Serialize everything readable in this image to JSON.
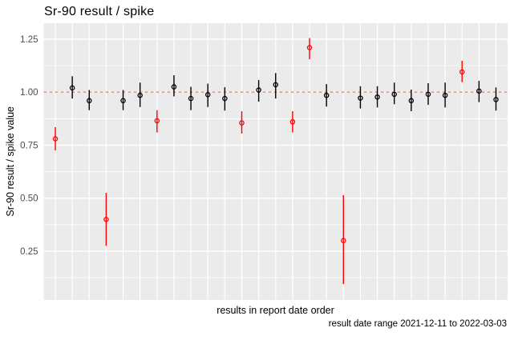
{
  "figure": {
    "title": "Sr-90 result / spike",
    "x_axis_title": "results in report date order",
    "y_axis_title": "Sr-90 result / spike value",
    "caption": "result date range 2021-12-11 to 2022-03-03"
  },
  "chart_data": {
    "type": "scatter",
    "title": "Sr-90 result / spike",
    "xlabel": "results in report date order",
    "ylabel": "Sr-90 result / spike value",
    "caption": "result date range 2021-12-11 to 2022-03-03",
    "x_description": "27 results in report date order, no x tick labels shown",
    "ylim": [
      0.02,
      1.325
    ],
    "y_ticks": [
      {
        "label": "0.25",
        "value": 0.25
      },
      {
        "label": "0.50",
        "value": 0.5
      },
      {
        "label": "0.75",
        "value": 0.75
      },
      {
        "label": "1.00",
        "value": 1.0
      },
      {
        "label": "1.25",
        "value": 1.25
      }
    ],
    "grid": {
      "panel_bg": "#EBEBEB",
      "gridline_color": "#FFFFFF",
      "minor_y_step": 0.125,
      "vertical_gridline_at_each_point": true
    },
    "reference_line": {
      "y": 1.0,
      "style": "dashed",
      "color": "#E8896C"
    },
    "colors": {
      "black": "#000000",
      "red": "#FF0000"
    },
    "tick_label_color": "#4D4D4D",
    "legend": "none",
    "points": [
      {
        "i": 1,
        "flag": "red",
        "value": 0.78,
        "lo": 0.725,
        "hi": 0.835
      },
      {
        "i": 2,
        "flag": "black",
        "value": 1.02,
        "lo": 0.97,
        "hi": 1.075
      },
      {
        "i": 3,
        "flag": "black",
        "value": 0.96,
        "lo": 0.915,
        "hi": 1.01
      },
      {
        "i": 4,
        "flag": "red",
        "value": 0.4,
        "lo": 0.275,
        "hi": 0.525
      },
      {
        "i": 5,
        "flag": "black",
        "value": 0.96,
        "lo": 0.915,
        "hi": 1.01
      },
      {
        "i": 6,
        "flag": "black",
        "value": 0.985,
        "lo": 0.93,
        "hi": 1.045
      },
      {
        "i": 7,
        "flag": "red",
        "value": 0.865,
        "lo": 0.81,
        "hi": 0.915
      },
      {
        "i": 8,
        "flag": "black",
        "value": 1.025,
        "lo": 0.98,
        "hi": 1.08
      },
      {
        "i": 9,
        "flag": "black",
        "value": 0.97,
        "lo": 0.915,
        "hi": 1.025
      },
      {
        "i": 10,
        "flag": "black",
        "value": 0.988,
        "lo": 0.93,
        "hi": 1.04
      },
      {
        "i": 11,
        "flag": "black",
        "value": 0.97,
        "lo": 0.913,
        "hi": 1.023
      },
      {
        "i": 12,
        "flag": "red",
        "value": 0.855,
        "lo": 0.805,
        "hi": 0.91
      },
      {
        "i": 13,
        "flag": "black",
        "value": 1.01,
        "lo": 0.955,
        "hi": 1.057
      },
      {
        "i": 14,
        "flag": "black",
        "value": 1.035,
        "lo": 0.97,
        "hi": 1.09
      },
      {
        "i": 15,
        "flag": "red",
        "value": 0.86,
        "lo": 0.81,
        "hi": 0.91
      },
      {
        "i": 16,
        "flag": "red",
        "value": 1.21,
        "lo": 1.155,
        "hi": 1.255
      },
      {
        "i": 17,
        "flag": "black",
        "value": 0.985,
        "lo": 0.932,
        "hi": 1.038
      },
      {
        "i": 18,
        "flag": "red",
        "value": 0.3,
        "lo": 0.095,
        "hi": 0.515
      },
      {
        "i": 19,
        "flag": "black",
        "value": 0.972,
        "lo": 0.923,
        "hi": 1.028
      },
      {
        "i": 20,
        "flag": "black",
        "value": 0.977,
        "lo": 0.928,
        "hi": 1.028
      },
      {
        "i": 21,
        "flag": "black",
        "value": 0.99,
        "lo": 0.943,
        "hi": 1.045
      },
      {
        "i": 22,
        "flag": "black",
        "value": 0.96,
        "lo": 0.91,
        "hi": 1.012
      },
      {
        "i": 23,
        "flag": "black",
        "value": 0.99,
        "lo": 0.94,
        "hi": 1.042
      },
      {
        "i": 24,
        "flag": "black",
        "value": 0.985,
        "lo": 0.928,
        "hi": 1.045
      },
      {
        "i": 25,
        "flag": "red",
        "value": 1.095,
        "lo": 1.047,
        "hi": 1.148
      },
      {
        "i": 26,
        "flag": "black",
        "value": 1.005,
        "lo": 0.953,
        "hi": 1.053
      },
      {
        "i": 27,
        "flag": "black",
        "value": 0.965,
        "lo": 0.913,
        "hi": 1.022
      }
    ]
  }
}
